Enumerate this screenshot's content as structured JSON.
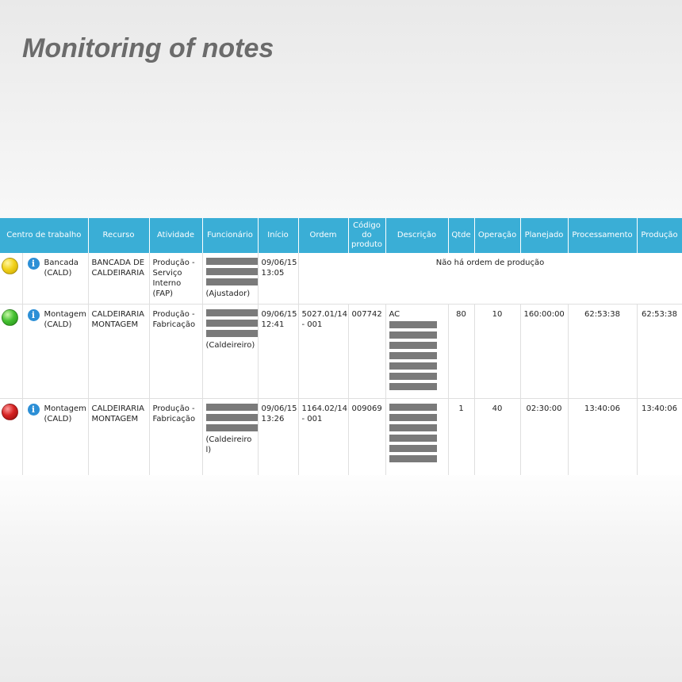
{
  "page": {
    "title": "Monitoring of notes"
  },
  "table": {
    "headers": [
      "Centro de trabalho",
      "Recurso",
      "Atividade",
      "Funcionário",
      "Início",
      "Ordem",
      "Código do produto",
      "Descrição",
      "Qtde",
      "Operação",
      "Planejado",
      "Processamento",
      "Produção"
    ],
    "rows": [
      {
        "status": "yellow",
        "centro": "Bancada (CALD)",
        "recurso": "BANCADA DE CALDEIRARIA",
        "atividade": "Produção - Serviço Interno (FAP)",
        "funcionario_role": "(Ajustador)",
        "inicio": "09/06/15 13:05",
        "message": "Não há ordem de produção"
      },
      {
        "status": "green",
        "centro": "Montagem (CALD)",
        "recurso": "CALDEIRARIA MONTAGEM",
        "atividade": "Produção - Fabricação",
        "funcionario_role": "(Caldeireiro)",
        "inicio": "09/06/15 12:41",
        "ordem": "5027.01/14 - 001",
        "codigo": "007742",
        "descricao": "AC",
        "qtde": "80",
        "operacao": "10",
        "planejado": "160:00:00",
        "processamento": "62:53:38",
        "producao": "62:53:38"
      },
      {
        "status": "red",
        "centro": "Montagem (CALD)",
        "recurso": "CALDEIRARIA MONTAGEM",
        "atividade": "Produção - Fabricação",
        "funcionario_role": "(Caldeireiro l)",
        "inicio": "09/06/15 13:26",
        "ordem": "1164.02/14 - 001",
        "codigo": "009069",
        "descricao": "",
        "qtde": "1",
        "operacao": "40",
        "planejado": "02:30:00",
        "processamento": "13:40:06",
        "producao": "13:40:06"
      }
    ]
  },
  "colors": {
    "header_bg": "#3aaed6",
    "yellow": "#f2d21a",
    "green": "#46c232",
    "red": "#d62222",
    "info": "#2c8fd6"
  },
  "icons": {
    "status": "status-light-icon",
    "info": "info-icon"
  }
}
